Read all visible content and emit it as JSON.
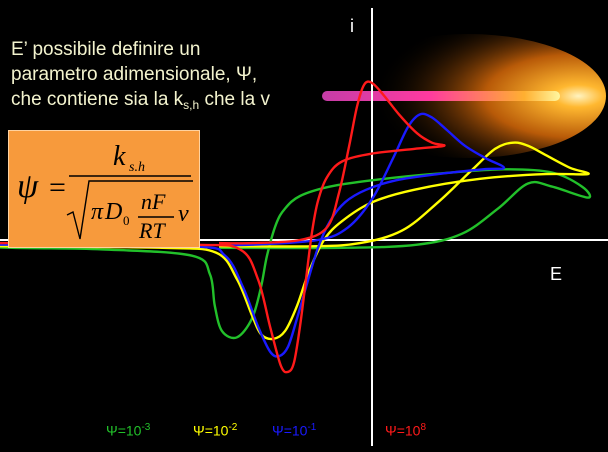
{
  "text": {
    "line1": "E’ possibile definire un",
    "line2": "parametro adimensionale, Ψ,",
    "line3_before": "che contiene sia la k",
    "line3_sub": "s,h",
    "line3_after": " che la v"
  },
  "formula": {
    "lhs": "ψ",
    "eq": "=",
    "num_k": "k",
    "num_sub": "s.h",
    "den_pi": "π",
    "den_D": "D",
    "den_D_sub": "0",
    "den_nF": "nF",
    "den_RT": "RT",
    "den_v": "v"
  },
  "chart_data": {
    "type": "line",
    "title": "",
    "xlabel": "E",
    "ylabel": "i",
    "grid": false,
    "series": [
      {
        "name": "Ψ=10-3",
        "color": "#22c02a",
        "points": [
          [
            -0.255,
            -0.05
          ],
          [
            -0.05,
            -0.05
          ],
          [
            0.075,
            -0.03
          ],
          [
            0.15,
            0.04
          ],
          [
            0.21,
            0.2
          ],
          [
            0.26,
            0.36
          ],
          [
            0.3,
            0.34
          ],
          [
            0.36,
            0.27
          ],
          [
            0.35,
            0.34
          ],
          [
            0.3,
            0.43
          ],
          [
            0.22,
            0.45
          ],
          [
            0.1,
            0.42
          ],
          [
            0.0,
            0.38
          ],
          [
            -0.07,
            0.34
          ],
          [
            -0.12,
            0.28
          ],
          [
            -0.145,
            0.2
          ],
          [
            -0.16,
            0.1
          ],
          [
            -0.175,
            -0.1
          ],
          [
            -0.185,
            -0.3
          ],
          [
            -0.2,
            -0.5
          ],
          [
            -0.225,
            -0.62
          ],
          [
            -0.25,
            -0.58
          ],
          [
            -0.262,
            -0.42
          ],
          [
            -0.27,
            -0.22
          ],
          [
            -0.3,
            -0.1
          ],
          [
            -0.45,
            -0.06
          ],
          [
            -0.6,
            -0.05
          ],
          [
            -0.8,
            -0.03
          ],
          [
            -1.0,
            -0.02
          ]
        ]
      },
      {
        "name": "Ψ=10-2",
        "color": "#ffff00",
        "points": [
          [
            -0.255,
            -0.04
          ],
          [
            -0.1,
            -0.04
          ],
          [
            -0.02,
            -0.02
          ],
          [
            0.05,
            0.06
          ],
          [
            0.11,
            0.24
          ],
          [
            0.165,
            0.44
          ],
          [
            0.205,
            0.58
          ],
          [
            0.235,
            0.62
          ],
          [
            0.26,
            0.6
          ],
          [
            0.29,
            0.54
          ],
          [
            0.33,
            0.46
          ],
          [
            0.36,
            0.42
          ],
          [
            0.29,
            0.42
          ],
          [
            0.18,
            0.39
          ],
          [
            0.07,
            0.32
          ],
          [
            0.0,
            0.24
          ],
          [
            -0.05,
            0.12
          ],
          [
            -0.08,
            0.0
          ],
          [
            -0.105,
            -0.2
          ],
          [
            -0.125,
            -0.42
          ],
          [
            -0.145,
            -0.58
          ],
          [
            -0.165,
            -0.63
          ],
          [
            -0.185,
            -0.6
          ],
          [
            -0.2,
            -0.48
          ],
          [
            -0.225,
            -0.25
          ],
          [
            -0.26,
            -0.08
          ],
          [
            -0.35,
            -0.05
          ],
          [
            -0.6,
            -0.04
          ],
          [
            -1.0,
            -0.02
          ]
        ]
      },
      {
        "name": "Ψ=10-1",
        "color": "#1a1aff",
        "points": [
          [
            -0.255,
            -0.03
          ],
          [
            -0.2,
            -0.03
          ],
          [
            -0.09,
            0.0
          ],
          [
            -0.04,
            0.08
          ],
          [
            0.0,
            0.26
          ],
          [
            0.035,
            0.52
          ],
          [
            0.06,
            0.72
          ],
          [
            0.08,
            0.8
          ],
          [
            0.1,
            0.78
          ],
          [
            0.125,
            0.7
          ],
          [
            0.155,
            0.6
          ],
          [
            0.19,
            0.52
          ],
          [
            0.22,
            0.46
          ],
          [
            0.185,
            0.45
          ],
          [
            0.11,
            0.42
          ],
          [
            0.04,
            0.38
          ],
          [
            -0.01,
            0.32
          ],
          [
            -0.045,
            0.24
          ],
          [
            -0.07,
            0.12
          ],
          [
            -0.09,
            -0.05
          ],
          [
            -0.11,
            -0.3
          ],
          [
            -0.125,
            -0.5
          ],
          [
            -0.14,
            -0.68
          ],
          [
            -0.155,
            -0.74
          ],
          [
            -0.17,
            -0.71
          ],
          [
            -0.19,
            -0.55
          ],
          [
            -0.215,
            -0.3
          ],
          [
            -0.245,
            -0.1
          ],
          [
            -0.3,
            -0.04
          ],
          [
            -0.6,
            -0.03
          ],
          [
            -1.0,
            -0.02
          ]
        ]
      },
      {
        "name": "Ψ=108",
        "color": "#ff1a1a",
        "points": [
          [
            -0.255,
            -0.02
          ],
          [
            -0.2,
            -0.02
          ],
          [
            -0.12,
            0.0
          ],
          [
            -0.075,
            0.08
          ],
          [
            -0.055,
            0.3
          ],
          [
            -0.038,
            0.6
          ],
          [
            -0.025,
            0.85
          ],
          [
            -0.013,
            0.99
          ],
          [
            0.0,
            1.0
          ],
          [
            0.02,
            0.92
          ],
          [
            0.045,
            0.8
          ],
          [
            0.075,
            0.68
          ],
          [
            0.1,
            0.62
          ],
          [
            0.12,
            0.6
          ],
          [
            0.07,
            0.58
          ],
          [
            0.0,
            0.55
          ],
          [
            -0.05,
            0.5
          ],
          [
            -0.075,
            0.4
          ],
          [
            -0.09,
            0.25
          ],
          [
            -0.1,
            0.05
          ],
          [
            -0.11,
            -0.25
          ],
          [
            -0.12,
            -0.55
          ],
          [
            -0.13,
            -0.78
          ],
          [
            -0.14,
            -0.84
          ],
          [
            -0.152,
            -0.8
          ],
          [
            -0.17,
            -0.55
          ],
          [
            -0.19,
            -0.25
          ],
          [
            -0.22,
            -0.06
          ],
          [
            -0.3,
            -0.03
          ],
          [
            -0.6,
            -0.02
          ],
          [
            -1.0,
            -0.01
          ]
        ]
      }
    ],
    "xlim": [
      -1.0,
      0.4
    ],
    "ylim": [
      -1.0,
      1.0
    ]
  },
  "legend_parts": [
    {
      "label": "Ψ=10",
      "exp": "-3",
      "color": "#22c02a"
    },
    {
      "label": "Ψ=10",
      "exp": "-2",
      "color": "#ffff00"
    },
    {
      "label": "Ψ=10",
      "exp": "-1",
      "color": "#1a1aff"
    },
    {
      "label": "Ψ=10",
      "exp": "8",
      "color": "#ff1a1a"
    }
  ]
}
